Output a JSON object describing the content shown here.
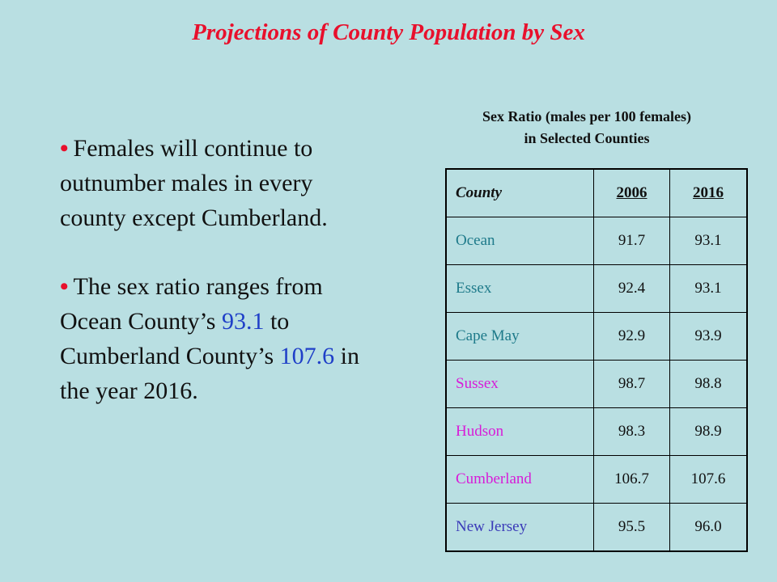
{
  "title": "Projections of County Population by Sex",
  "bullets": {
    "first": {
      "text": "Females will continue to outnumber males in every county except Cumberland."
    },
    "second": {
      "part1": "The sex ratio ranges from Ocean County’s ",
      "value1": "93.1",
      "part2": " to Cumberland County’s ",
      "value2": "107.6",
      "part3": " in the year 2016."
    }
  },
  "table": {
    "caption_line1": "Sex Ratio (males per 100 females)",
    "caption_line2": "in Selected Counties",
    "headers": {
      "county": "County",
      "y1": "2006",
      "y2": "2016"
    },
    "rows": [
      {
        "county": "Ocean",
        "y1": "91.7",
        "y2": "93.1",
        "color": "#1e7a8a"
      },
      {
        "county": "Essex",
        "y1": "92.4",
        "y2": "93.1",
        "color": "#1e7a8a"
      },
      {
        "county": "Cape May",
        "y1": "92.9",
        "y2": "93.9",
        "color": "#1e7a8a"
      },
      {
        "county": "Sussex",
        "y1": "98.7",
        "y2": "98.8",
        "color": "#d81bd8"
      },
      {
        "county": "Hudson",
        "y1": "98.3",
        "y2": "98.9",
        "color": "#d81bd8"
      },
      {
        "county": "Cumberland",
        "y1": "106.7",
        "y2": "107.6",
        "color": "#d81bd8"
      },
      {
        "county": "New Jersey",
        "y1": "95.5",
        "y2": "96.0",
        "color": "#3a3ab8"
      }
    ]
  },
  "colors": {
    "background": "#b9dfe2",
    "title": "#e8102c",
    "highlight": "#1f3fc8"
  }
}
